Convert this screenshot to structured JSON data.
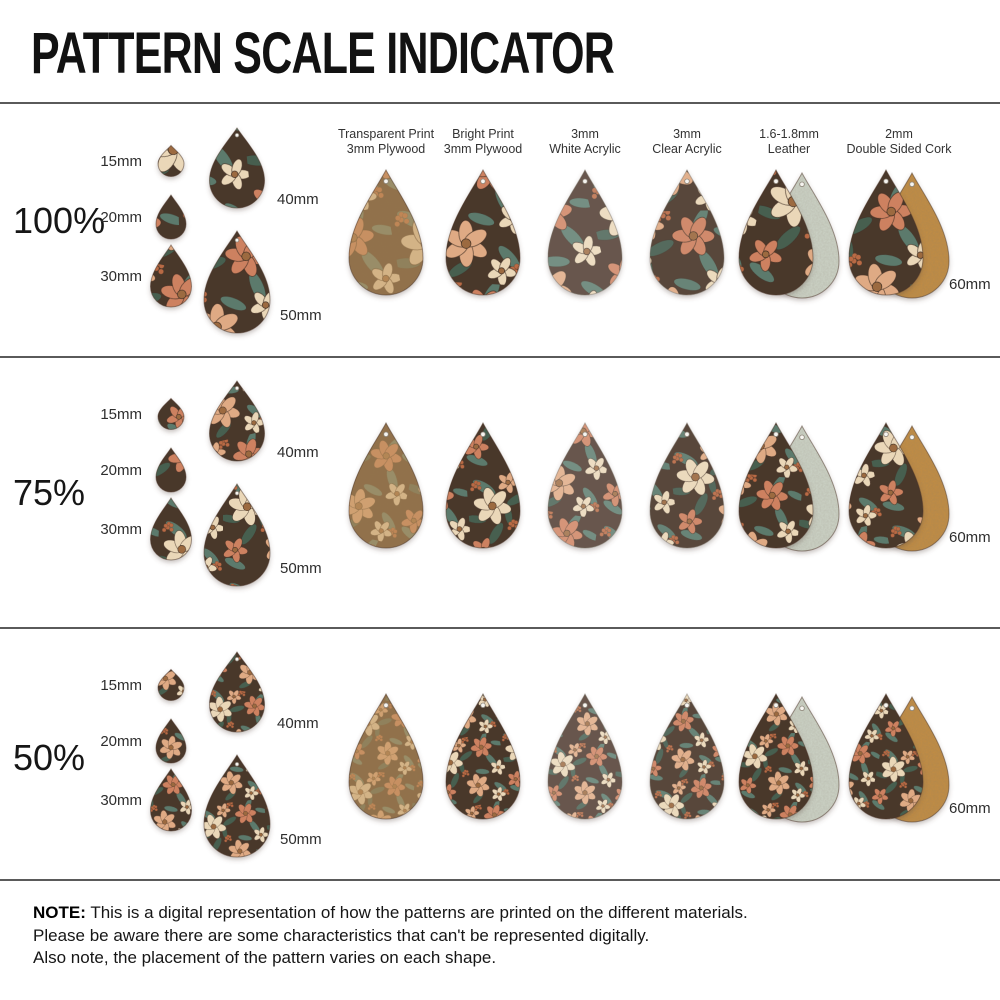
{
  "title": "PATTERN SCALE INDICATOR",
  "columns": [
    {
      "key": "transparent-plywood",
      "line1": "Transparent Print",
      "line2": "3mm Plywood",
      "variant": "trans"
    },
    {
      "key": "bright-plywood",
      "line1": "Bright Print",
      "line2": "3mm Plywood",
      "variant": "bright"
    },
    {
      "key": "white-acrylic",
      "line1": "3mm",
      "line2": "White Acrylic",
      "variant": "white"
    },
    {
      "key": "clear-acrylic",
      "line1": "3mm",
      "line2": "Clear Acrylic",
      "variant": "clear"
    },
    {
      "key": "leather",
      "line1": "1.6-1.8mm",
      "line2": "Leather",
      "variant": "leather"
    },
    {
      "key": "cork",
      "line1": "2mm",
      "line2": "Double Sided Cork",
      "variant": "cork"
    }
  ],
  "rows": [
    {
      "id": "100",
      "percent_label": "100%",
      "pattern_scale": 1.0,
      "sizes": [
        {
          "label": "15mm"
        },
        {
          "label": "20mm"
        },
        {
          "label": "30mm"
        },
        {
          "label": "40mm"
        },
        {
          "label": "50mm"
        }
      ],
      "large_label": "60mm"
    },
    {
      "id": "75",
      "percent_label": "75%",
      "pattern_scale": 0.75,
      "sizes": [
        {
          "label": "15mm"
        },
        {
          "label": "20mm"
        },
        {
          "label": "30mm"
        },
        {
          "label": "40mm"
        },
        {
          "label": "50mm"
        }
      ],
      "large_label": "60mm"
    },
    {
      "id": "50",
      "percent_label": "50%",
      "pattern_scale": 0.5,
      "sizes": [
        {
          "label": "15mm"
        },
        {
          "label": "20mm"
        },
        {
          "label": "30mm"
        },
        {
          "label": "40mm"
        },
        {
          "label": "50mm"
        }
      ],
      "large_label": "60mm"
    }
  ],
  "note": {
    "heading": "NOTE:",
    "lines": [
      "This is a digital representation of how the patterns are printed on the different materials.",
      "Please be aware there are some characteristics that can't be represented digitally.",
      "Also note, the placement of the pattern varies on each shape."
    ]
  },
  "colors": {
    "text": "#161616",
    "header_text": "#333333",
    "divider": "#5a5a5a",
    "pattern_dark": "#4a372b",
    "outline": "#3c2b20",
    "flower_cream": "#ead7b8",
    "flower_salmon": "#cd8160",
    "flower_peach": "#dfaa84",
    "leaf_teal": "#5b7a6c",
    "leaf_dark": "#465f50",
    "berry": "#b96a44",
    "flower_center": "#9c6a40",
    "wood": "#c49a63",
    "leather_back": "#cdd4c7",
    "cork_back": "#c28d42"
  }
}
